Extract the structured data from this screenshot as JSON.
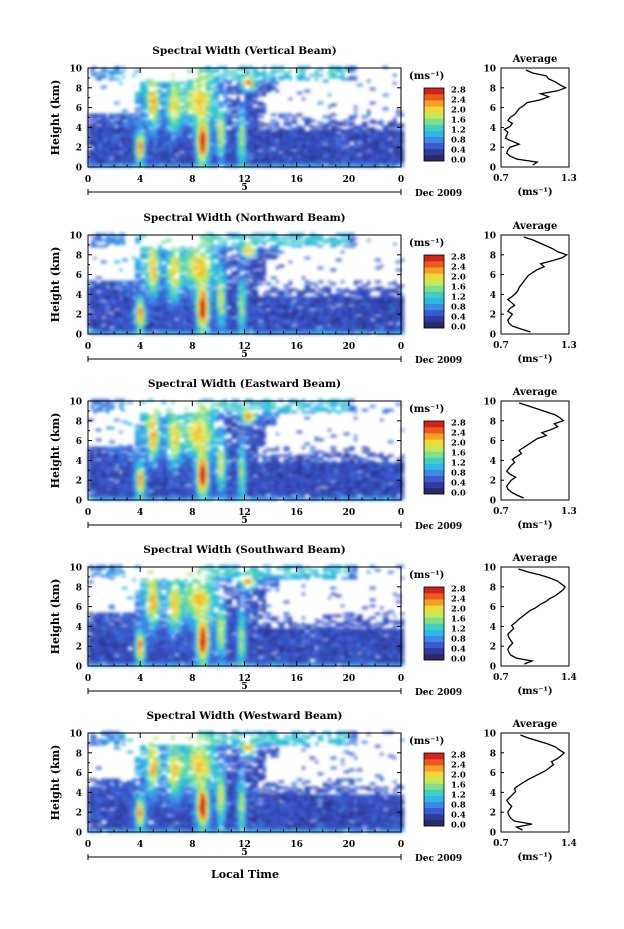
{
  "figure": {
    "x_axis_label": "Local Time",
    "date_label": "Dec 2009",
    "day_label": "5",
    "y_axis_label": "Height (km)",
    "colorbar_unit": "(ms⁻¹)",
    "profile_title": "Average",
    "profile_unit": "(ms⁻¹)",
    "colorbar_ticks": [
      "2.8",
      "2.4",
      "2.0",
      "1.6",
      "1.2",
      "0.8",
      "0.4",
      "0.0"
    ],
    "colormap": [
      "#2a2a6a",
      "#2e3a9c",
      "#3c5ad0",
      "#3b8ae6",
      "#2fb7e8",
      "#3fd0c0",
      "#7ee08a",
      "#c8e85a",
      "#f0d83a",
      "#f6a028",
      "#ef5a1c",
      "#d2231a"
    ]
  },
  "chart_data": [
    {
      "type": "heatmap",
      "title": "Spectral Width (Vertical Beam)",
      "xlabel": "",
      "ylabel": "Height (km)",
      "xlim": [
        0,
        24
      ],
      "ylim": [
        0,
        10
      ],
      "x_ticks": [
        "0",
        "4",
        "8",
        "12",
        "16",
        "20",
        "0"
      ],
      "y_ticks": [
        "0",
        "2",
        "4",
        "6",
        "8",
        "10"
      ],
      "colorbar_range": [
        0.0,
        2.8
      ],
      "profile": {
        "title": "Average",
        "xlim": [
          0.7,
          1.3
        ],
        "x_ticks": [
          "0.7",
          "1.3"
        ],
        "y_ticks": [
          "0",
          "2",
          "4",
          "6",
          "8",
          "10"
        ],
        "heights": [
          0.2,
          0.5,
          0.8,
          1.1,
          1.4,
          1.7,
          2.0,
          2.3,
          2.6,
          2.9,
          3.2,
          3.5,
          3.8,
          4.1,
          4.4,
          4.7,
          5.0,
          5.3,
          5.6,
          5.9,
          6.2,
          6.5,
          6.8,
          7.1,
          7.4,
          7.7,
          8.0,
          8.3,
          8.6,
          8.9,
          9.2,
          9.5,
          9.8
        ],
        "values": [
          0.98,
          1.02,
          0.84,
          0.78,
          0.75,
          0.76,
          0.78,
          0.86,
          0.8,
          0.74,
          0.75,
          0.76,
          0.73,
          0.78,
          0.8,
          0.76,
          0.78,
          0.82,
          0.84,
          0.86,
          0.9,
          0.93,
          1.05,
          1.12,
          1.05,
          1.2,
          1.27,
          1.22,
          1.18,
          1.12,
          1.1,
          0.98,
          0.92
        ]
      }
    },
    {
      "type": "heatmap",
      "title": "Spectral Width (Northward Beam)",
      "xlabel": "",
      "ylabel": "Height (km)",
      "xlim": [
        0,
        24
      ],
      "ylim": [
        0,
        10
      ],
      "x_ticks": [
        "0",
        "4",
        "8",
        "12",
        "16",
        "20",
        "0"
      ],
      "y_ticks": [
        "0",
        "2",
        "4",
        "6",
        "8",
        "10"
      ],
      "colorbar_range": [
        0.0,
        2.8
      ],
      "profile": {
        "title": "Average",
        "xlim": [
          0.7,
          1.3
        ],
        "x_ticks": [
          "0.7",
          "1.3"
        ],
        "y_ticks": [
          "0",
          "2",
          "4",
          "6",
          "8",
          "10"
        ],
        "heights": [
          0.2,
          0.5,
          0.8,
          1.1,
          1.4,
          1.7,
          2.0,
          2.3,
          2.6,
          2.9,
          3.2,
          3.5,
          3.8,
          4.1,
          4.4,
          4.7,
          5.0,
          5.3,
          5.6,
          5.9,
          6.2,
          6.5,
          6.8,
          7.1,
          7.4,
          7.7,
          8.0,
          8.3,
          8.6,
          8.9,
          9.2,
          9.5,
          9.8
        ],
        "values": [
          0.96,
          0.88,
          0.8,
          0.77,
          0.76,
          0.78,
          0.8,
          0.76,
          0.78,
          0.82,
          0.79,
          0.76,
          0.8,
          0.83,
          0.85,
          0.86,
          0.88,
          0.9,
          0.92,
          0.94,
          0.98,
          1.02,
          1.08,
          1.05,
          1.15,
          1.24,
          1.28,
          1.2,
          1.16,
          1.1,
          1.04,
          0.98,
          0.9
        ]
      }
    },
    {
      "type": "heatmap",
      "title": "Spectral Width (Eastward Beam)",
      "xlabel": "",
      "ylabel": "Height (km)",
      "xlim": [
        0,
        24
      ],
      "ylim": [
        0,
        10
      ],
      "x_ticks": [
        "0",
        "4",
        "8",
        "12",
        "16",
        "20",
        "0"
      ],
      "y_ticks": [
        "0",
        "2",
        "4",
        "6",
        "8",
        "10"
      ],
      "colorbar_range": [
        0.0,
        2.8
      ],
      "profile": {
        "title": "Average",
        "xlim": [
          0.7,
          1.3
        ],
        "x_ticks": [
          "0.7",
          "1.3"
        ],
        "y_ticks": [
          "0",
          "2",
          "4",
          "6",
          "8",
          "10"
        ],
        "heights": [
          0.2,
          0.5,
          0.8,
          1.1,
          1.4,
          1.7,
          2.0,
          2.3,
          2.6,
          2.9,
          3.2,
          3.5,
          3.8,
          4.1,
          4.4,
          4.7,
          5.0,
          5.3,
          5.6,
          5.9,
          6.2,
          6.5,
          6.8,
          7.1,
          7.4,
          7.7,
          8.0,
          8.3,
          8.6,
          8.9,
          9.2,
          9.5,
          9.8
        ],
        "values": [
          0.9,
          0.84,
          0.79,
          0.76,
          0.75,
          0.77,
          0.79,
          0.83,
          0.78,
          0.75,
          0.77,
          0.79,
          0.82,
          0.8,
          0.84,
          0.88,
          0.86,
          0.9,
          0.94,
          0.98,
          1.02,
          1.1,
          1.06,
          1.14,
          1.2,
          1.17,
          1.25,
          1.22,
          1.18,
          1.1,
          1.02,
          0.94,
          0.86
        ]
      }
    },
    {
      "type": "heatmap",
      "title": "Spectral Width (Southward Beam)",
      "xlabel": "",
      "ylabel": "Height (km)",
      "xlim": [
        0,
        24
      ],
      "ylim": [
        0,
        10
      ],
      "x_ticks": [
        "0",
        "4",
        "8",
        "12",
        "16",
        "20",
        "0"
      ],
      "y_ticks": [
        "0",
        "2",
        "4",
        "6",
        "8",
        "10"
      ],
      "colorbar_range": [
        0.0,
        2.8
      ],
      "profile": {
        "title": "Average",
        "xlim": [
          0.7,
          1.4
        ],
        "x_ticks": [
          "0.7",
          "1.4"
        ],
        "y_ticks": [
          "0",
          "2",
          "4",
          "6",
          "8",
          "10"
        ],
        "heights": [
          0.2,
          0.5,
          0.8,
          1.1,
          1.4,
          1.7,
          2.0,
          2.3,
          2.6,
          2.9,
          3.2,
          3.5,
          3.8,
          4.1,
          4.4,
          4.7,
          5.0,
          5.3,
          5.6,
          5.9,
          6.2,
          6.5,
          6.8,
          7.1,
          7.4,
          7.7,
          8.0,
          8.3,
          8.6,
          8.9,
          9.2,
          9.5,
          9.8
        ],
        "values": [
          0.94,
          1.02,
          0.86,
          0.8,
          0.78,
          0.77,
          0.79,
          0.82,
          0.8,
          0.78,
          0.77,
          0.8,
          0.83,
          0.81,
          0.85,
          0.88,
          0.92,
          0.96,
          1.0,
          1.06,
          1.1,
          1.16,
          1.2,
          1.26,
          1.3,
          1.34,
          1.36,
          1.32,
          1.28,
          1.2,
          1.1,
          0.98,
          0.88
        ]
      }
    },
    {
      "type": "heatmap",
      "title": "Spectral Width (Westward Beam)",
      "xlabel": "Local Time",
      "ylabel": "Height (km)",
      "xlim": [
        0,
        24
      ],
      "ylim": [
        0,
        10
      ],
      "x_ticks": [
        "0",
        "4",
        "8",
        "12",
        "16",
        "20",
        "0"
      ],
      "y_ticks": [
        "0",
        "2",
        "4",
        "6",
        "8",
        "10"
      ],
      "colorbar_range": [
        0.0,
        2.8
      ],
      "profile": {
        "title": "Average",
        "xlim": [
          0.7,
          1.4
        ],
        "x_ticks": [
          "0.7",
          "1.4"
        ],
        "y_ticks": [
          "0",
          "2",
          "4",
          "6",
          "8",
          "10"
        ],
        "heights": [
          0.2,
          0.5,
          0.8,
          1.1,
          1.4,
          1.7,
          2.0,
          2.3,
          2.6,
          2.9,
          3.2,
          3.5,
          3.8,
          4.1,
          4.4,
          4.7,
          5.0,
          5.3,
          5.6,
          5.9,
          6.2,
          6.5,
          6.8,
          7.1,
          7.4,
          7.7,
          8.0,
          8.3,
          8.6,
          8.9,
          9.2,
          9.5,
          9.8
        ],
        "values": [
          0.92,
          0.86,
          1.02,
          0.84,
          0.8,
          0.78,
          0.77,
          0.79,
          0.81,
          0.78,
          0.76,
          0.79,
          0.82,
          0.85,
          0.84,
          0.88,
          0.93,
          0.98,
          1.04,
          1.1,
          1.16,
          1.2,
          1.24,
          1.22,
          1.28,
          1.32,
          1.35,
          1.3,
          1.26,
          1.18,
          1.08,
          0.98,
          0.9
        ]
      }
    }
  ]
}
